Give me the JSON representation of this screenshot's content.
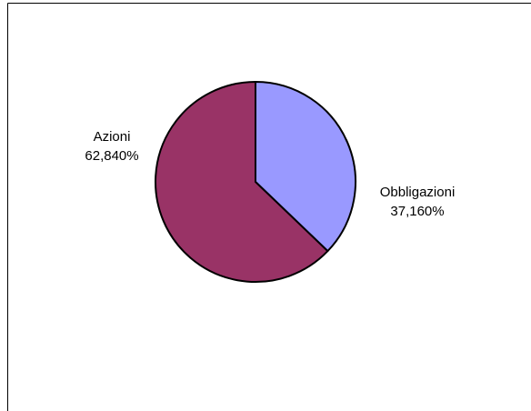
{
  "chart_data": {
    "type": "pie",
    "title": "",
    "categories": [
      "Obbligazioni",
      "Azioni"
    ],
    "values": [
      37.16,
      62.84
    ],
    "value_labels": [
      "37,160%",
      "62,840%"
    ],
    "unit": "%",
    "legend": "none",
    "colors": [
      "#9999FF",
      "#993366"
    ],
    "start_angle_deg": 0,
    "direction": "clockwise"
  }
}
